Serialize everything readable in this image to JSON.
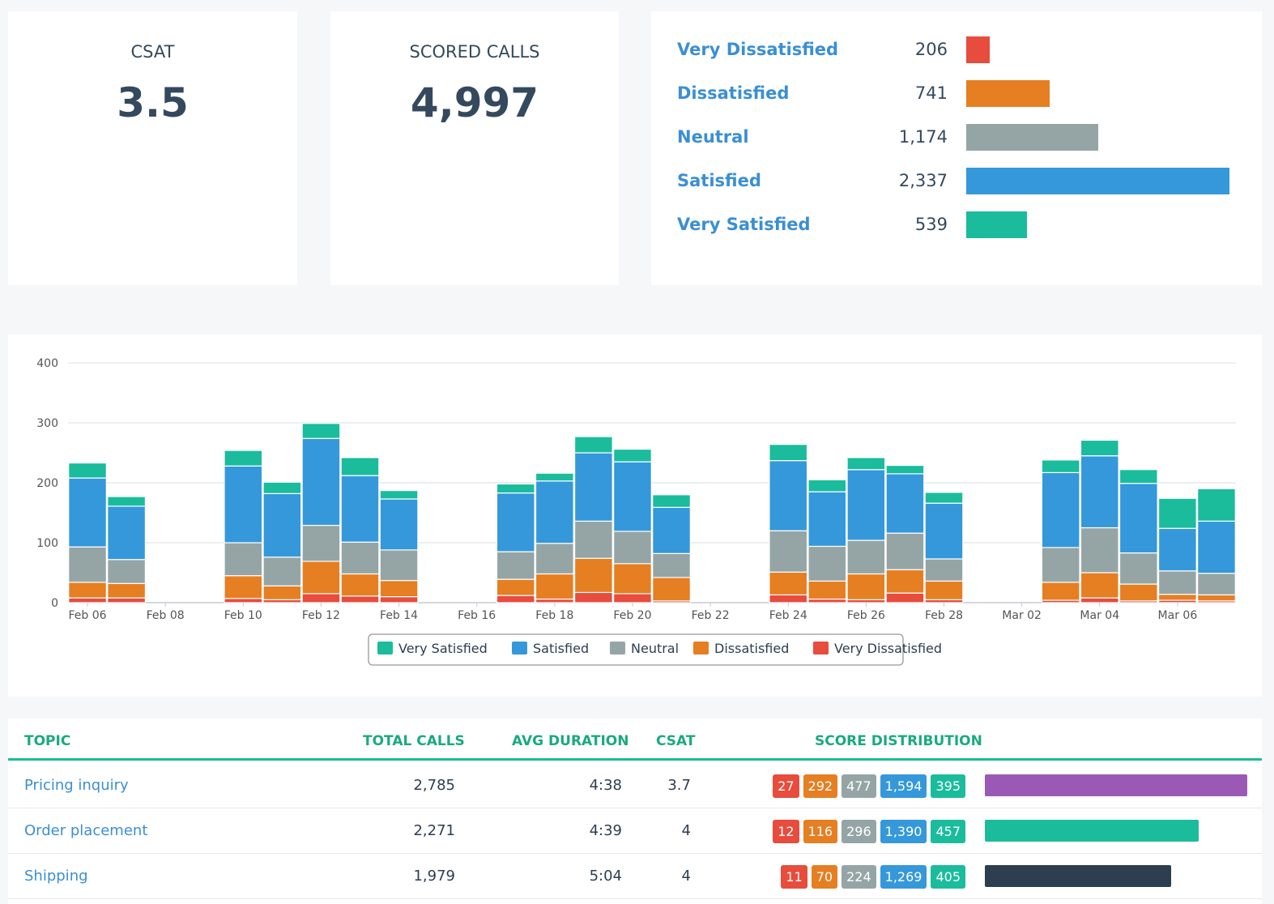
{
  "colors": {
    "very_dissatisfied": "#e74c3c",
    "dissatisfied": "#e67e22",
    "neutral": "#95a5a6",
    "satisfied": "#3498db",
    "very_satisfied": "#1abc9c"
  },
  "kpis": {
    "csat": {
      "label": "CSAT",
      "value": "3.5"
    },
    "scored_calls": {
      "label": "SCORED CALLS",
      "value": "4,997"
    }
  },
  "distribution": [
    {
      "label": "Very Dissatisfied",
      "count": "206",
      "value": 206,
      "color": "#e74c3c"
    },
    {
      "label": "Dissatisfied",
      "count": "741",
      "value": 741,
      "color": "#e67e22"
    },
    {
      "label": "Neutral",
      "count": "1,174",
      "value": 1174,
      "color": "#95a5a6"
    },
    {
      "label": "Satisfied",
      "count": "2,337",
      "value": 2337,
      "color": "#3498db"
    },
    {
      "label": "Very Satisfied",
      "count": "539",
      "value": 539,
      "color": "#1abc9c"
    }
  ],
  "chart_data": {
    "type": "bar",
    "stacked": true,
    "title": "",
    "xlabel": "",
    "ylabel": "",
    "ylim": [
      0,
      400
    ],
    "yticks": [
      0,
      100,
      200,
      300,
      400
    ],
    "x_ticks": [
      "Feb 06",
      "Feb 08",
      "Feb 10",
      "Feb 12",
      "Feb 14",
      "Feb 16",
      "Feb 18",
      "Feb 20",
      "Feb 22",
      "Feb 24",
      "Feb 26",
      "Feb 28",
      "Mar 02",
      "Mar 04",
      "Mar 06"
    ],
    "categories": [
      "Feb 06",
      "Feb 07",
      "Feb 08",
      "Feb 09",
      "Feb 10",
      "Feb 11",
      "Feb 12",
      "Feb 13",
      "Feb 14",
      "Feb 15",
      "Feb 16",
      "Feb 17",
      "Feb 18",
      "Feb 19",
      "Feb 20",
      "Feb 21",
      "Feb 22",
      "Feb 23",
      "Feb 24",
      "Feb 25",
      "Feb 26",
      "Feb 27",
      "Feb 28",
      "Mar 01",
      "Mar 02",
      "Mar 03",
      "Mar 04",
      "Mar 05",
      "Mar 06",
      "Mar 07"
    ],
    "series": [
      {
        "name": "Very Dissatisfied",
        "color": "#e74c3c",
        "values": [
          8,
          8,
          0,
          0,
          7,
          5,
          15,
          11,
          10,
          0,
          0,
          12,
          6,
          17,
          15,
          3,
          0,
          0,
          13,
          6,
          5,
          16,
          5,
          0,
          0,
          4,
          8,
          3,
          4,
          3
        ]
      },
      {
        "name": "Dissatisfied",
        "color": "#e67e22",
        "values": [
          26,
          24,
          0,
          0,
          38,
          23,
          54,
          37,
          27,
          0,
          0,
          27,
          42,
          57,
          50,
          39,
          0,
          0,
          38,
          30,
          43,
          39,
          31,
          0,
          0,
          30,
          42,
          28,
          10,
          10
        ]
      },
      {
        "name": "Neutral",
        "color": "#95a5a6",
        "values": [
          59,
          40,
          0,
          0,
          55,
          48,
          60,
          53,
          51,
          0,
          0,
          46,
          51,
          62,
          54,
          40,
          0,
          0,
          69,
          58,
          56,
          61,
          37,
          0,
          0,
          58,
          75,
          52,
          39,
          36
        ]
      },
      {
        "name": "Satisfied",
        "color": "#3498db",
        "values": [
          115,
          89,
          0,
          0,
          128,
          106,
          145,
          111,
          85,
          0,
          0,
          98,
          104,
          114,
          116,
          77,
          0,
          0,
          117,
          91,
          118,
          99,
          93,
          0,
          0,
          125,
          120,
          116,
          71,
          87
        ]
      },
      {
        "name": "Very Satisfied",
        "color": "#1abc9c",
        "values": [
          25,
          16,
          0,
          0,
          26,
          19,
          25,
          30,
          14,
          0,
          0,
          15,
          13,
          27,
          21,
          21,
          0,
          0,
          27,
          20,
          20,
          14,
          18,
          0,
          0,
          21,
          26,
          23,
          50,
          54
        ]
      }
    ],
    "legend": {
      "position": "bottom-center",
      "items": [
        "Very Satisfied",
        "Satisfied",
        "Neutral",
        "Dissatisfied",
        "Very Dissatisfied"
      ]
    },
    "grid": true
  },
  "table": {
    "headers": {
      "topic": "TOPIC",
      "total_calls": "TOTAL CALLS",
      "avg_duration": "AVG DURATION",
      "csat": "CSAT",
      "score_distribution": "SCORE DISTRIBUTION"
    },
    "rows": [
      {
        "topic": "Pricing inquiry",
        "total_calls": "2,785",
        "calls_value": 2785,
        "avg_duration": "4:38",
        "csat": "3.7",
        "scores": [
          "27",
          "292",
          "477",
          "1,594",
          "395"
        ],
        "bar_color": "#9b59b6"
      },
      {
        "topic": "Order placement",
        "total_calls": "2,271",
        "calls_value": 2271,
        "avg_duration": "4:39",
        "csat": "4",
        "scores": [
          "12",
          "116",
          "296",
          "1,390",
          "457"
        ],
        "bar_color": "#1abc9c"
      },
      {
        "topic": "Shipping",
        "total_calls": "1,979",
        "calls_value": 1979,
        "avg_duration": "5:04",
        "csat": "4",
        "scores": [
          "11",
          "70",
          "224",
          "1,269",
          "405"
        ],
        "bar_color": "#2c3e50"
      }
    ]
  }
}
